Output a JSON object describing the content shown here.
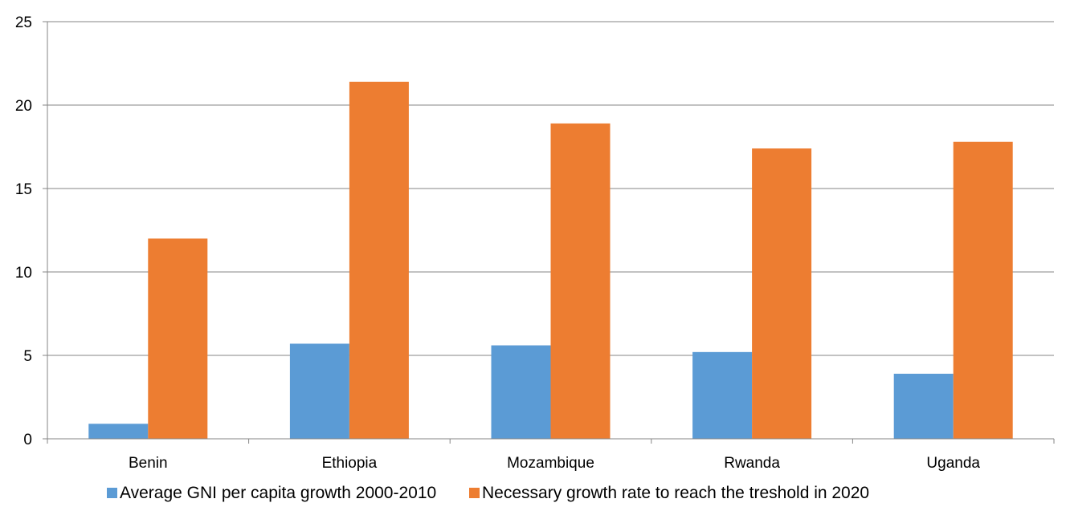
{
  "chart_data": {
    "type": "bar",
    "title": "",
    "xlabel": "",
    "ylabel": "",
    "categories": [
      "Benin",
      "Ethiopia",
      "Mozambique",
      "Rwanda",
      "Uganda"
    ],
    "series": [
      {
        "name": "Average GNI per capita growth 2000-2010",
        "color": "#5b9bd5",
        "values": [
          0.9,
          5.7,
          5.6,
          5.2,
          3.9
        ]
      },
      {
        "name": "Necessary growth rate to reach the treshold in 2020",
        "color": "#ed7d31",
        "values": [
          12.0,
          21.4,
          18.9,
          17.4,
          17.8
        ]
      }
    ],
    "ylim": [
      0,
      25
    ],
    "yticks": [
      0,
      5,
      10,
      15,
      20,
      25
    ],
    "grid": true,
    "legend_position": "bottom"
  }
}
